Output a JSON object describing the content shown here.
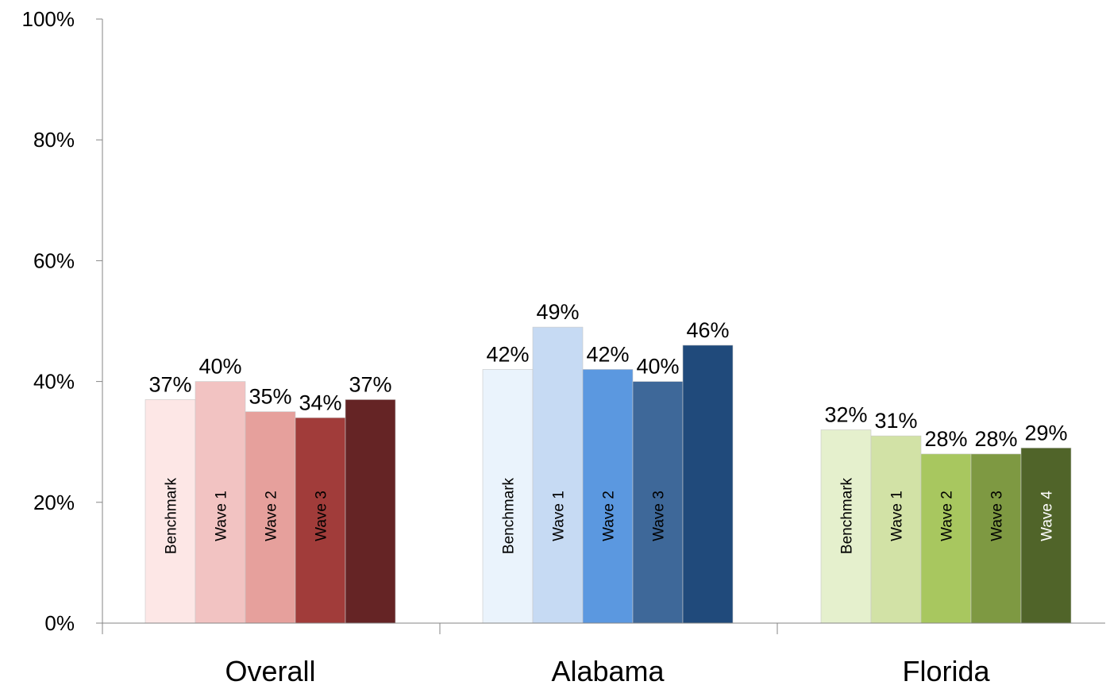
{
  "chart_data": {
    "type": "bar",
    "title": "",
    "xlabel": "",
    "ylabel": "",
    "ylim": [
      0,
      100
    ],
    "y_ticks": [
      "0%",
      "20%",
      "40%",
      "60%",
      "80%",
      "100%"
    ],
    "y_tick_values": [
      0,
      20,
      40,
      60,
      80,
      100
    ],
    "legend": "none",
    "grid": false,
    "groups": [
      {
        "category": "Overall",
        "bars": [
          {
            "label": "Benchmark",
            "value": 37,
            "value_label": "37%",
            "color": "#FDE7E6"
          },
          {
            "label": "Wave 1",
            "value": 40,
            "value_label": "40%",
            "color": "#F2C3C2"
          },
          {
            "label": "Wave 2",
            "value": 35,
            "value_label": "35%",
            "color": "#E6A09C"
          },
          {
            "label": "Wave 3",
            "value": 34,
            "value_label": "34%",
            "color": "#A13C3A"
          },
          {
            "label": "",
            "value": 37,
            "value_label": "37%",
            "color": "#652425"
          }
        ]
      },
      {
        "category": "Alabama",
        "bars": [
          {
            "label": "Benchmark",
            "value": 42,
            "value_label": "42%",
            "color": "#EAF3FC"
          },
          {
            "label": "Wave 1",
            "value": 49,
            "value_label": "49%",
            "color": "#C6DAF3"
          },
          {
            "label": "Wave 2",
            "value": 42,
            "value_label": "42%",
            "color": "#5B98E0"
          },
          {
            "label": "Wave 3",
            "value": 40,
            "value_label": "40%",
            "color": "#3E6899"
          },
          {
            "label": "",
            "value": 46,
            "value_label": "46%",
            "color": "#204A7B"
          }
        ]
      },
      {
        "category": "Florida",
        "bars": [
          {
            "label": "Benchmark",
            "value": 32,
            "value_label": "32%",
            "color": "#E5F0CD"
          },
          {
            "label": "Wave 1",
            "value": 31,
            "value_label": "31%",
            "color": "#D2E2A6"
          },
          {
            "label": "Wave 2",
            "value": 28,
            "value_label": "28%",
            "color": "#A8C75F"
          },
          {
            "label": "Wave 3",
            "value": 28,
            "value_label": "28%",
            "color": "#7E9942"
          },
          {
            "label": "Wave 4",
            "value": 29,
            "value_label": "29%",
            "color": "#506429"
          }
        ]
      }
    ]
  }
}
